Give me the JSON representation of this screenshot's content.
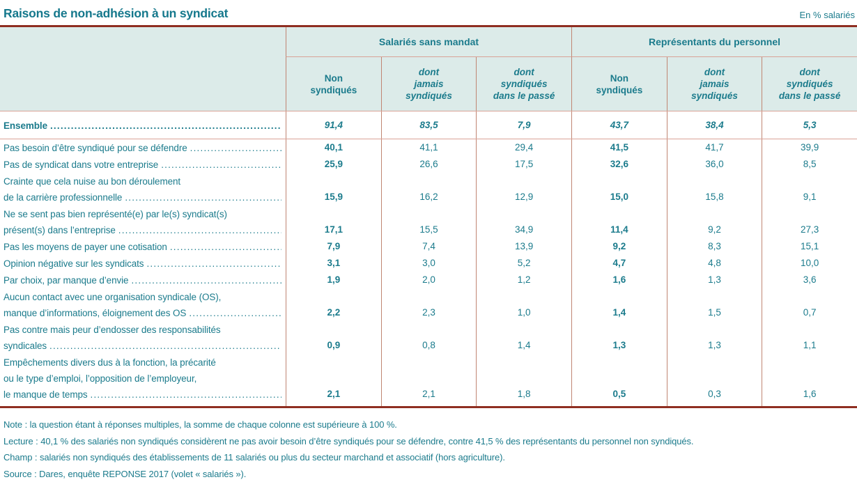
{
  "title": "Raisons de non-adhésion à un syndicat",
  "unit_label": "En % salariés",
  "colors": {
    "accent_teal": "#1b7b8c",
    "rule_maroon": "#8f2e21",
    "rule_salmon": "#d9a296",
    "header_background": "#dcebe9"
  },
  "table": {
    "group_headers": [
      "Salariés sans mandat",
      "Représentants du personnel"
    ],
    "column_headers": [
      {
        "lines": [
          "Non",
          "syndiqués"
        ]
      },
      {
        "lines": [
          "dont",
          "jamais",
          "syndiqués"
        ]
      },
      {
        "lines": [
          "dont",
          "syndiqués",
          "dans le passé"
        ]
      },
      {
        "lines": [
          "Non",
          "syndiqués"
        ]
      },
      {
        "lines": [
          "dont",
          "jamais",
          "syndiqués"
        ]
      },
      {
        "lines": [
          "dont",
          "syndiqués",
          "dans le passé"
        ]
      }
    ],
    "ensemble": {
      "label": "Ensemble",
      "values": [
        "91,4",
        "83,5",
        "7,9",
        "43,7",
        "38,4",
        "5,3"
      ]
    },
    "rows": [
      {
        "label_lines": [
          "Pas besoin d’être syndiqué pour se défendre"
        ],
        "values": [
          "40,1",
          "41,1",
          "29,4",
          "41,5",
          "41,7",
          "39,9"
        ]
      },
      {
        "label_lines": [
          "Pas de syndicat dans votre entreprise"
        ],
        "values": [
          "25,9",
          "26,6",
          "17,5",
          "32,6",
          "36,0",
          "8,5"
        ]
      },
      {
        "label_lines": [
          "Crainte que cela nuise au bon déroulement",
          "de la carrière professionnelle"
        ],
        "values": [
          "15,9",
          "16,2",
          "12,9",
          "15,0",
          "15,8",
          "9,1"
        ]
      },
      {
        "label_lines": [
          "Ne se sent pas bien représenté(e) par le(s) syndicat(s)",
          "présent(s) dans l’entreprise"
        ],
        "values": [
          "17,1",
          "15,5",
          "34,9",
          "11,4",
          "9,2",
          "27,3"
        ]
      },
      {
        "label_lines": [
          "Pas les moyens de payer une cotisation"
        ],
        "values": [
          "7,9",
          "7,4",
          "13,9",
          "9,2",
          "8,3",
          "15,1"
        ]
      },
      {
        "label_lines": [
          "Opinion négative sur les syndicats"
        ],
        "values": [
          "3,1",
          "3,0",
          "5,2",
          "4,7",
          "4,8",
          "10,0"
        ]
      },
      {
        "label_lines": [
          "Par choix, par  manque d’envie"
        ],
        "values": [
          "1,9",
          "2,0",
          "1,2",
          "1,6",
          "1,3",
          "3,6"
        ]
      },
      {
        "label_lines": [
          "Aucun contact avec une organisation syndicale (OS),",
          "manque d’informations, éloignement des OS"
        ],
        "values": [
          "2,2",
          "2,3",
          "1,0",
          "1,4",
          "1,5",
          "0,7"
        ]
      },
      {
        "label_lines": [
          "Pas contre mais peur d’endosser des responsabilités",
          "syndicales"
        ],
        "values": [
          "0,9",
          "0,8",
          "1,4",
          "1,3",
          "1,3",
          "1,1"
        ]
      },
      {
        "label_lines": [
          "Empêchements divers dus à la fonction, la précarité",
          "ou le type d’emploi, l’opposition de l’employeur,",
          "le manque de temps"
        ],
        "values": [
          "2,1",
          "2,1",
          "1,8",
          "0,5",
          "0,3",
          "1,6"
        ]
      }
    ]
  },
  "notes": [
    "Note : la question étant à réponses multiples, la somme de chaque colonne est supérieure à 100 %.",
    "Lecture : 40,1 % des salariés non syndiqués considèrent ne pas avoir besoin d’être syndiqués pour se défendre, contre 41,5 % des représentants du personnel non syndiqués.",
    "Champ : salariés non syndiqués des établissements de 11 salariés ou plus du secteur marchand et associatif (hors agriculture).",
    "Source : Dares, enquête REPONSE 2017 (volet « salariés »)."
  ]
}
